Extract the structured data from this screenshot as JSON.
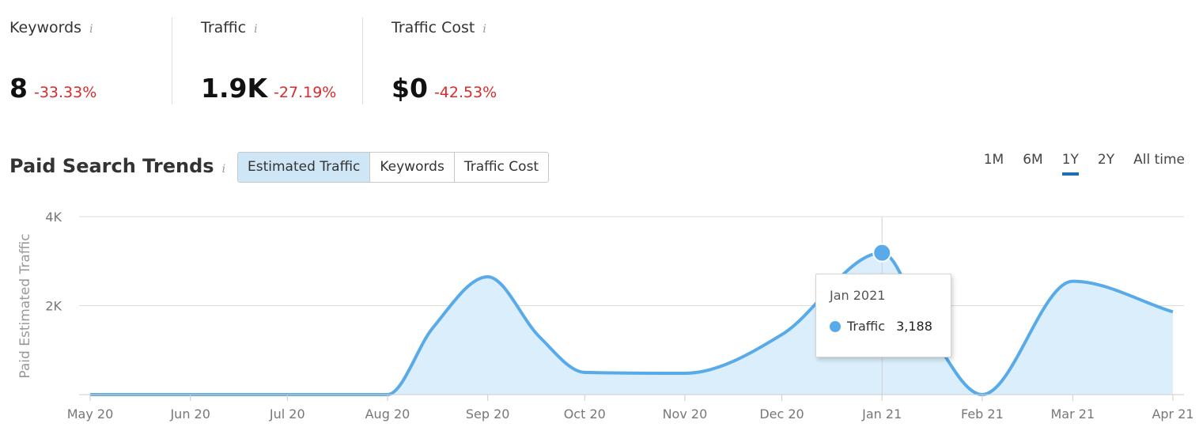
{
  "metrics": [
    {
      "label": "Keywords",
      "value": "8",
      "delta": "-33.33%"
    },
    {
      "label": "Traffic",
      "value": "1.9K",
      "delta": "-27.19%"
    },
    {
      "label": "Traffic Cost",
      "value": "$0",
      "delta": "-42.53%"
    }
  ],
  "info_icon": "i",
  "section_title": "Paid Search Trends",
  "tabs": [
    "Estimated Traffic",
    "Keywords",
    "Traffic Cost"
  ],
  "active_tab": "Estimated Traffic",
  "ranges": [
    "1M",
    "6M",
    "1Y",
    "2Y",
    "All time"
  ],
  "active_range": "1Y",
  "tooltip": {
    "title": "Jan 2021",
    "series": "Traffic",
    "value": "3,188"
  },
  "colors": {
    "series": "#58abe8",
    "fill": "#daeefb",
    "negative": "#d92b2b",
    "active_range": "#1b6fb5"
  },
  "chart_data": {
    "type": "area",
    "title": "",
    "ylabel": "Paid Estimated Traffic",
    "x": [
      "2020-05-01",
      "2020-06-01",
      "2020-07-01",
      "2020-08-01",
      "2020-08-15",
      "2020-09-01",
      "2020-09-17",
      "2020-10-01",
      "2020-11-01",
      "2020-12-01",
      "2021-01-01",
      "2021-01-15",
      "2021-02-01",
      "2021-03-01",
      "2021-04-01"
    ],
    "xtick_labels": [
      "May 20",
      "Jun 20",
      "Jul 20",
      "Aug 20",
      "Sep 20",
      "Oct 20",
      "Nov 20",
      "Dec 20",
      "Jan 21",
      "Feb 21",
      "Mar 21",
      "Apr 21"
    ],
    "ytick_labels": [
      "2K",
      "4K"
    ],
    "ylim": [
      0,
      4000
    ],
    "series": [
      {
        "name": "Traffic",
        "values": [
          0,
          0,
          0,
          0,
          1500,
          2650,
          1300,
          500,
          480,
          1350,
          3188,
          1500,
          0,
          2550,
          1860
        ]
      }
    ],
    "grid": true,
    "highlight": {
      "x": "2021-01-01",
      "value": 3188
    }
  }
}
